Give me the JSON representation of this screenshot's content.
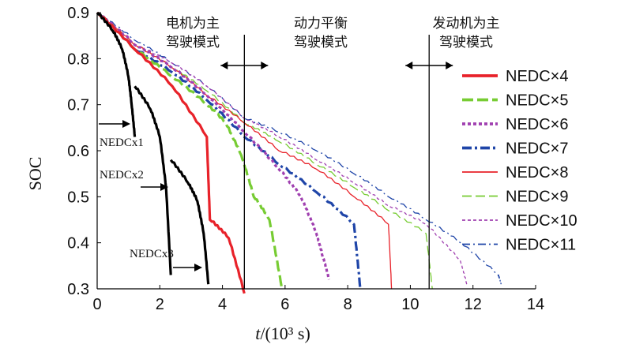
{
  "chart_data": {
    "type": "line",
    "xlabel_italic": "t",
    "xlabel_rest": "/(10³ s)",
    "ylabel": "SOC",
    "xlim": [
      0,
      14
    ],
    "ylim": [
      0.3,
      0.9
    ],
    "x_ticks": [
      0,
      2,
      4,
      6,
      8,
      10,
      12,
      14
    ],
    "y_ticks": [
      0.3,
      0.4,
      0.5,
      0.6,
      0.7,
      0.8,
      0.9
    ],
    "mode_boundaries": [
      4.7,
      10.6
    ],
    "zones": [
      {
        "line1": "电机为主",
        "line2": "驾驶模式"
      },
      {
        "line1": "动力平衡",
        "line2": "驾驶模式"
      },
      {
        "line1": "发动机为主",
        "line2": "驾驶模式"
      }
    ],
    "annotations": [
      "NEDCx1",
      "NEDCx2",
      "NEDCx3"
    ],
    "series": [
      {
        "name": "NEDC×1",
        "color": "#000000",
        "style": "solid-bold",
        "in_legend": false,
        "points": [
          [
            0,
            0.9
          ],
          [
            0.5,
            0.86
          ],
          [
            0.8,
            0.82
          ],
          [
            1.0,
            0.76
          ],
          [
            1.1,
            0.7
          ],
          [
            1.2,
            0.63
          ]
        ]
      },
      {
        "name": "NEDC×2",
        "color": "#000000",
        "style": "solid-bold",
        "in_legend": false,
        "points": [
          [
            1.2,
            0.74
          ],
          [
            1.7,
            0.69
          ],
          [
            2.0,
            0.63
          ],
          [
            2.2,
            0.52
          ],
          [
            2.35,
            0.33
          ]
        ]
      },
      {
        "name": "NEDC×3",
        "color": "#000000",
        "style": "solid-bold",
        "in_legend": false,
        "points": [
          [
            2.35,
            0.58
          ],
          [
            2.9,
            0.53
          ],
          [
            3.2,
            0.49
          ],
          [
            3.4,
            0.42
          ],
          [
            3.55,
            0.31
          ]
        ]
      },
      {
        "name": "NEDC×4",
        "color": "#e8222a",
        "style": "solid-bold",
        "in_legend": true,
        "points": [
          [
            0,
            0.9
          ],
          [
            1.2,
            0.82
          ],
          [
            2.4,
            0.74
          ],
          [
            3.5,
            0.63
          ],
          [
            3.6,
            0.45
          ],
          [
            4.2,
            0.41
          ],
          [
            4.7,
            0.29
          ]
        ]
      },
      {
        "name": "NEDC×5",
        "color": "#77cc33",
        "style": "dash-bold",
        "in_legend": true,
        "points": [
          [
            0,
            0.9
          ],
          [
            1.2,
            0.82
          ],
          [
            2.4,
            0.76
          ],
          [
            3.5,
            0.7
          ],
          [
            4.1,
            0.66
          ],
          [
            4.6,
            0.59
          ],
          [
            5.0,
            0.5
          ],
          [
            5.5,
            0.45
          ],
          [
            5.9,
            0.3
          ]
        ]
      },
      {
        "name": "NEDC×6",
        "color": "#a040b0",
        "style": "dot-bold",
        "in_legend": true,
        "points": [
          [
            0,
            0.9
          ],
          [
            1.2,
            0.83
          ],
          [
            2.4,
            0.78
          ],
          [
            3.5,
            0.72
          ],
          [
            4.7,
            0.64
          ],
          [
            5.8,
            0.56
          ],
          [
            6.5,
            0.5
          ],
          [
            7.0,
            0.42
          ],
          [
            7.2,
            0.37
          ],
          [
            7.4,
            0.32
          ]
        ]
      },
      {
        "name": "NEDC×7",
        "color": "#1f45a8",
        "style": "dashdot-bold",
        "in_legend": true,
        "points": [
          [
            0,
            0.9
          ],
          [
            1.2,
            0.82
          ],
          [
            2.4,
            0.77
          ],
          [
            3.5,
            0.71
          ],
          [
            4.7,
            0.63
          ],
          [
            5.8,
            0.57
          ],
          [
            7.0,
            0.51
          ],
          [
            8.2,
            0.44
          ],
          [
            8.4,
            0.3
          ]
        ]
      },
      {
        "name": "NEDC×8",
        "color": "#e8222a",
        "style": "solid-thin",
        "in_legend": true,
        "points": [
          [
            0,
            0.9
          ],
          [
            1.2,
            0.83
          ],
          [
            2.4,
            0.78
          ],
          [
            3.5,
            0.72
          ],
          [
            4.7,
            0.66
          ],
          [
            5.8,
            0.6
          ],
          [
            7.0,
            0.56
          ],
          [
            8.2,
            0.5
          ],
          [
            9.3,
            0.44
          ],
          [
            9.4,
            0.3
          ]
        ]
      },
      {
        "name": "NEDC×9",
        "color": "#77cc33",
        "style": "dash-thin",
        "in_legend": true,
        "points": [
          [
            0,
            0.9
          ],
          [
            1.2,
            0.83
          ],
          [
            2.4,
            0.78
          ],
          [
            3.5,
            0.73
          ],
          [
            4.7,
            0.66
          ],
          [
            5.8,
            0.62
          ],
          [
            7.0,
            0.57
          ],
          [
            8.2,
            0.52
          ],
          [
            9.3,
            0.47
          ],
          [
            10.5,
            0.42
          ],
          [
            10.7,
            0.3
          ]
        ]
      },
      {
        "name": "NEDC×10",
        "color": "#a040b0",
        "style": "dot-thin",
        "in_legend": true,
        "points": [
          [
            0,
            0.9
          ],
          [
            1.2,
            0.83
          ],
          [
            2.4,
            0.79
          ],
          [
            3.5,
            0.74
          ],
          [
            4.7,
            0.67
          ],
          [
            5.8,
            0.63
          ],
          [
            7.0,
            0.58
          ],
          [
            8.2,
            0.53
          ],
          [
            9.3,
            0.48
          ],
          [
            10.5,
            0.44
          ],
          [
            11.6,
            0.36
          ],
          [
            11.8,
            0.31
          ]
        ]
      },
      {
        "name": "NEDC×11",
        "color": "#1f45a8",
        "style": "dashdot-thin",
        "in_legend": true,
        "points": [
          [
            0,
            0.9
          ],
          [
            1.2,
            0.84
          ],
          [
            2.4,
            0.79
          ],
          [
            3.5,
            0.74
          ],
          [
            4.7,
            0.67
          ],
          [
            5.8,
            0.64
          ],
          [
            7.0,
            0.6
          ],
          [
            8.2,
            0.55
          ],
          [
            9.3,
            0.5
          ],
          [
            10.5,
            0.45
          ],
          [
            11.6,
            0.4
          ],
          [
            12.8,
            0.33
          ],
          [
            12.9,
            0.31
          ]
        ]
      }
    ]
  }
}
